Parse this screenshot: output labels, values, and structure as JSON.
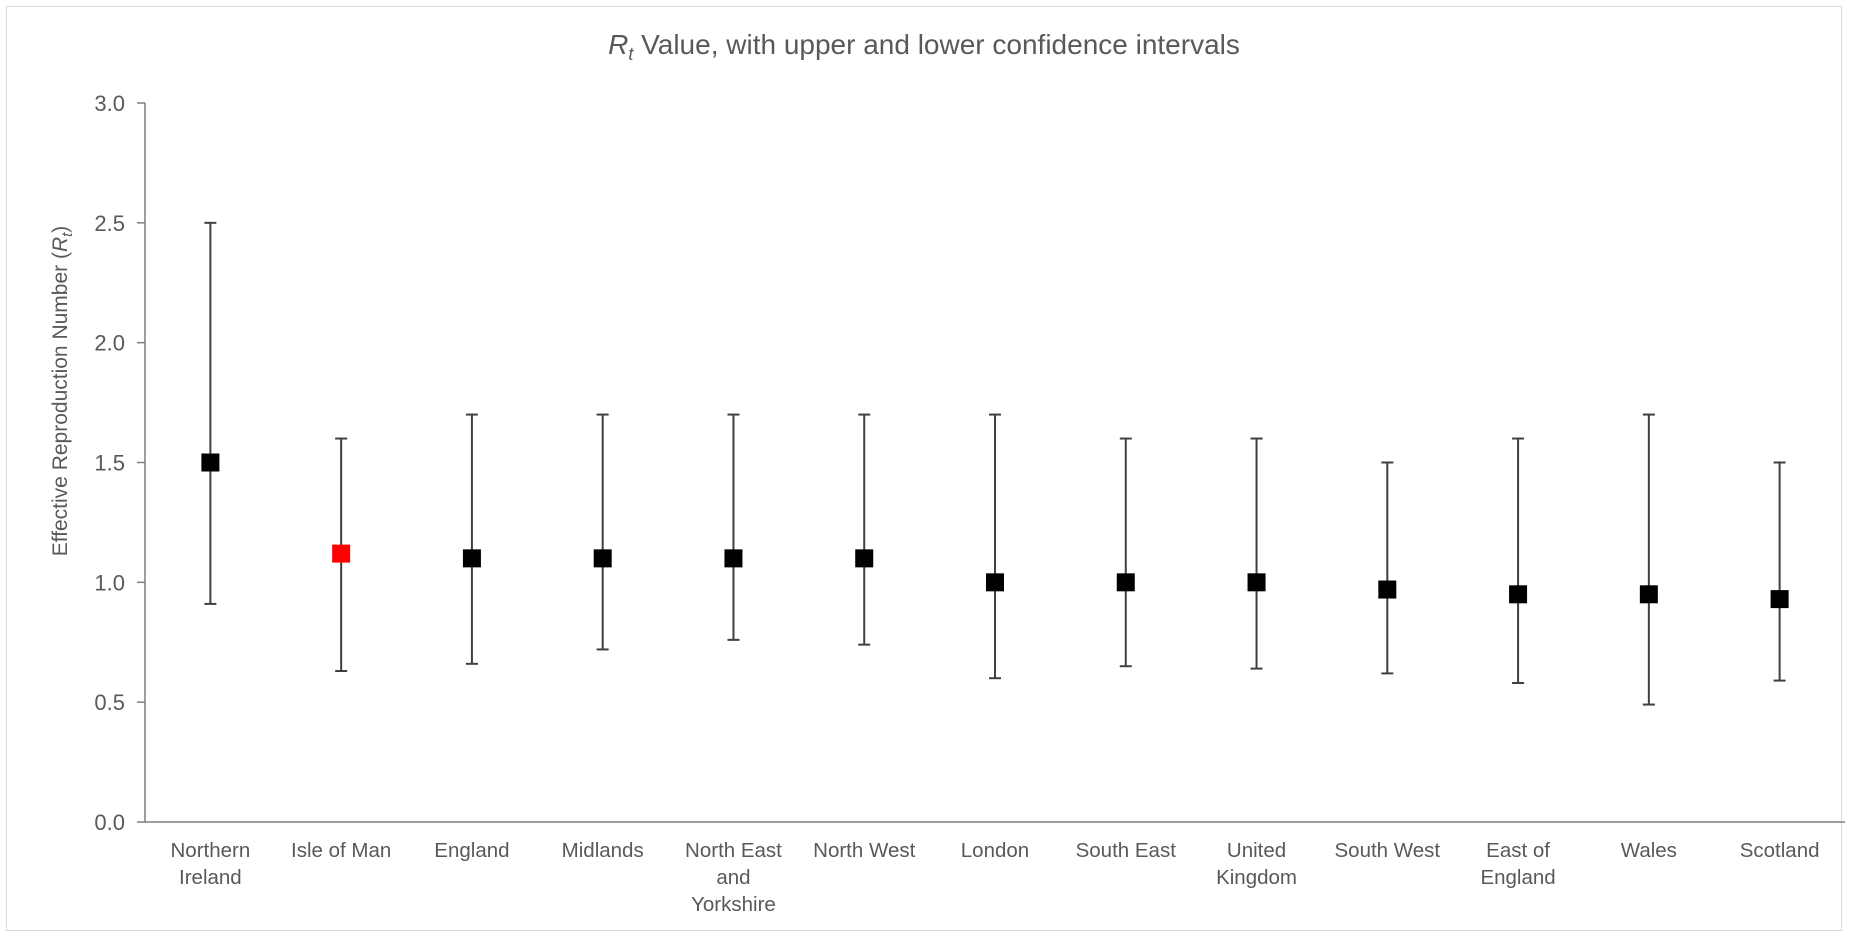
{
  "chart_data": {
    "type": "scatter",
    "title": {
      "symbol": "R",
      "subscript": "t",
      "text": " Value, with upper and lower confidence intervals"
    },
    "ylabel": {
      "text": "Effective Reproduction Number (",
      "symbol": "R",
      "subscript": "t",
      "suffix": ")"
    },
    "xlabel": "",
    "ylim": [
      0,
      3
    ],
    "yticks": [
      "0.0",
      "0.5",
      "1.0",
      "1.5",
      "2.0",
      "2.5",
      "3.0"
    ],
    "ytick_values": [
      0,
      0.5,
      1,
      1.5,
      2,
      2.5,
      3
    ],
    "grid": false,
    "legend": "none",
    "colors": {
      "default_marker": "#000000",
      "highlight_marker": "#ff0000",
      "error_bar": "#404040",
      "axis": "#7f7f7f",
      "text": "#595959"
    },
    "categories": [
      [
        "Northern",
        "Ireland"
      ],
      [
        "Isle of Man"
      ],
      [
        "England"
      ],
      [
        "Midlands"
      ],
      [
        "North East",
        "and",
        "Yorkshire"
      ],
      [
        "North West"
      ],
      [
        "London"
      ],
      [
        "South East"
      ],
      [
        "United",
        "Kingdom"
      ],
      [
        "South West"
      ],
      [
        "East of",
        "England"
      ],
      [
        "Wales"
      ],
      [
        "Scotland"
      ]
    ],
    "values": [
      1.5,
      1.12,
      1.1,
      1.1,
      1.1,
      1.1,
      1.0,
      1.0,
      1.0,
      0.97,
      0.95,
      0.95,
      0.93
    ],
    "lower": [
      0.91,
      0.63,
      0.66,
      0.72,
      0.76,
      0.74,
      0.6,
      0.65,
      0.64,
      0.62,
      0.58,
      0.49,
      0.59
    ],
    "upper": [
      2.5,
      1.6,
      1.7,
      1.7,
      1.7,
      1.7,
      1.7,
      1.6,
      1.6,
      1.5,
      1.6,
      1.7,
      1.5
    ],
    "highlight_index": 1
  }
}
